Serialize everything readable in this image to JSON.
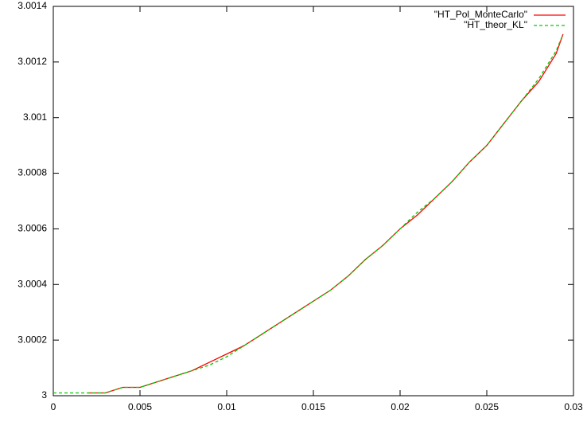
{
  "chart_data": {
    "type": "line",
    "x": [
      0,
      0.001,
      0.002,
      0.003,
      0.004,
      0.005,
      0.006,
      0.007,
      0.008,
      0.009,
      0.01,
      0.011,
      0.012,
      0.013,
      0.014,
      0.015,
      0.016,
      0.017,
      0.018,
      0.019,
      0.02,
      0.021,
      0.022,
      0.023,
      0.024,
      0.025,
      0.026,
      0.027,
      0.028,
      0.029,
      0.0294
    ],
    "series": [
      {
        "name": "\"HT_Pol_MonteCarlo\"",
        "color": "#ff0000",
        "dash": false,
        "values": [
          null,
          null,
          3.00001,
          3.00001,
          3.00003,
          3.00003,
          3.00005,
          3.00007,
          3.00009,
          3.00012,
          3.00015,
          3.00018,
          3.00022,
          3.00026,
          3.0003,
          3.00034,
          3.00038,
          3.00043,
          3.00049,
          3.00054,
          3.0006,
          3.00065,
          3.00071,
          3.00077,
          3.00084,
          3.0009,
          3.00098,
          3.00106,
          3.00113,
          3.00123,
          3.0013
        ]
      },
      {
        "name": "\"HT_theor_KL\"",
        "color": "#00cc00",
        "dash": true,
        "values": [
          3.00001,
          3.00001,
          3.00001,
          3.00001,
          3.00003,
          3.00003,
          3.00005,
          3.00007,
          3.00009,
          3.00011,
          3.00014,
          3.00018,
          3.00022,
          3.00026,
          3.0003,
          3.00034,
          3.00038,
          3.00043,
          3.00049,
          3.00054,
          3.0006,
          3.00066,
          3.00071,
          3.00077,
          3.00084,
          3.0009,
          3.00098,
          3.00106,
          3.00114,
          3.00124,
          3.0013
        ]
      }
    ],
    "xlim": [
      0,
      0.03
    ],
    "xticks": [
      0,
      0.005,
      0.01,
      0.015,
      0.02,
      0.025,
      0.03
    ],
    "ylim": [
      3,
      3.0014
    ],
    "yticks": [
      3,
      3.0002,
      3.0004,
      3.0006,
      3.0008,
      3.001,
      3.0012,
      3.0014
    ],
    "grid": false,
    "legend": "top-right"
  }
}
